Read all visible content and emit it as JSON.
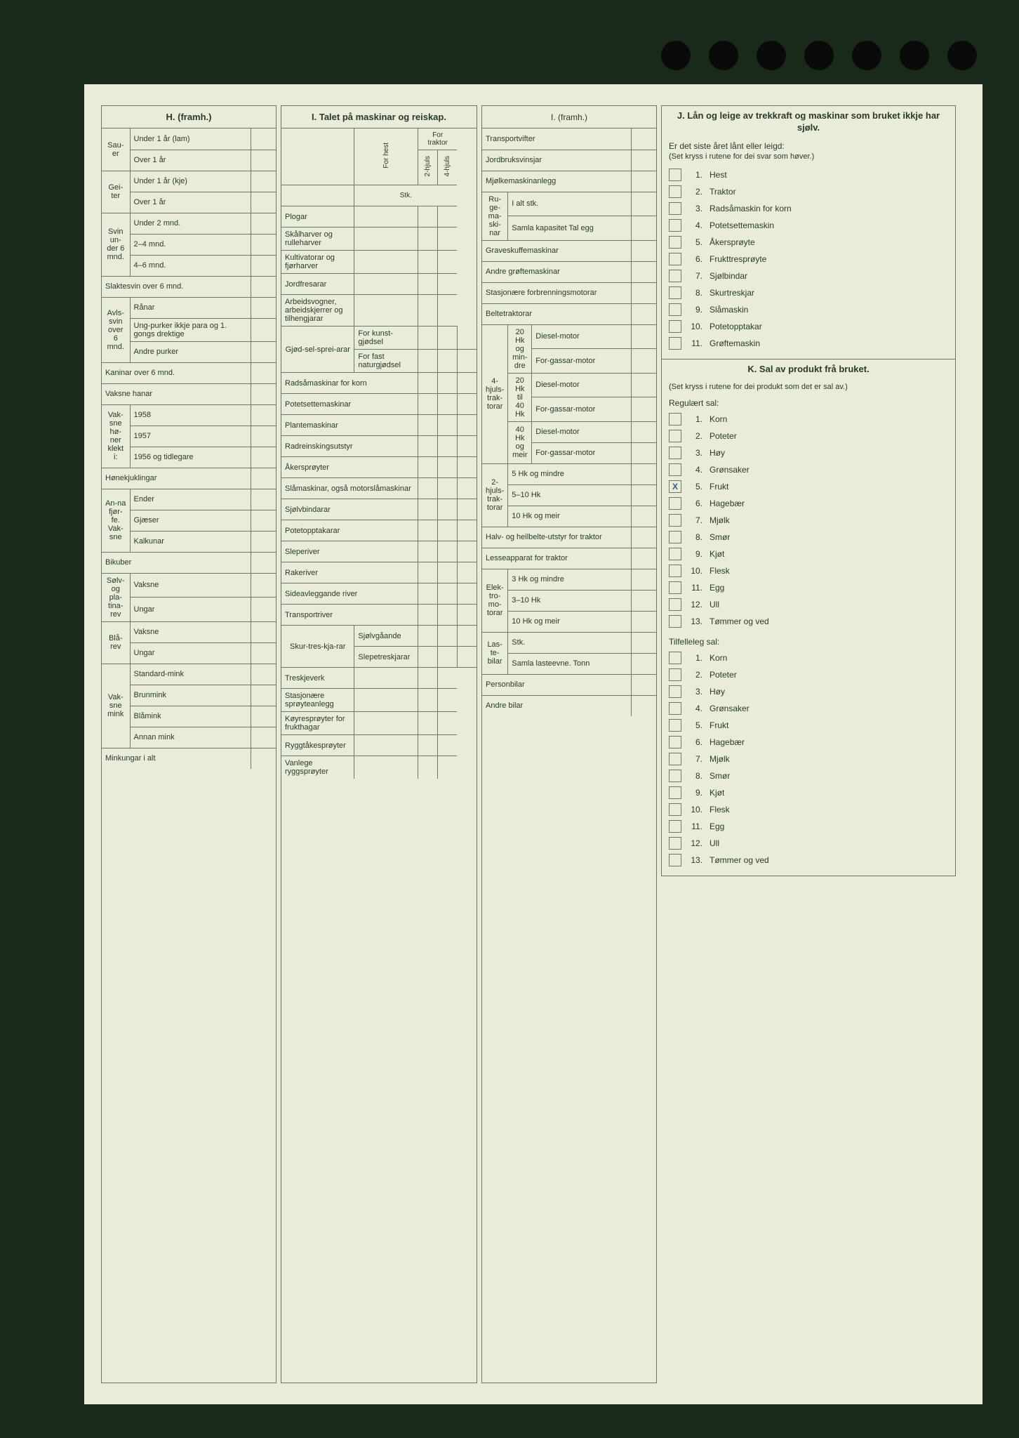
{
  "holes_count": 7,
  "H": {
    "title": "H. (framh.)",
    "groups": [
      {
        "label": "Sau-er",
        "rows": [
          "Under 1 år (lam)",
          "Over 1 år"
        ]
      },
      {
        "label": "Gei-ter",
        "rows": [
          "Under 1 år (kje)",
          "Over 1 år"
        ]
      },
      {
        "label": "Svin un-der 6 mnd.",
        "rows": [
          "Under 2 mnd.",
          "2–4 mnd.",
          "4–6 mnd."
        ]
      },
      {
        "label": null,
        "rows": [
          "Slaktesvin over 6 mnd."
        ]
      },
      {
        "label": "Avls-svin over 6 mnd.",
        "rows": [
          "Rånar",
          "Ung-purker ikkje para og 1. gongs drektige",
          "Andre purker"
        ]
      },
      {
        "label": null,
        "rows": [
          "Kaninar over 6 mnd."
        ]
      },
      {
        "label": null,
        "rows": [
          "Vaksne hanar"
        ]
      },
      {
        "label": "Vak-sne hø-ner klekt i:",
        "rows": [
          "1958",
          "1957",
          "1956 og tidlegare"
        ]
      },
      {
        "label": null,
        "rows": [
          "Hønekjuklingar"
        ]
      },
      {
        "label": "An-na fjør-fe. Vak-sne",
        "rows": [
          "Ender",
          "Gjæser",
          "Kalkunar"
        ]
      },
      {
        "label": null,
        "rows": [
          "Bikuber"
        ]
      },
      {
        "label": "Sølv- og pla-tina-rev",
        "rows": [
          "Vaksne",
          "Ungar"
        ]
      },
      {
        "label": "Blå-rev",
        "rows": [
          "Vaksne",
          "Ungar"
        ]
      },
      {
        "label": "Vak-sne mink",
        "rows": [
          "Standard-mink",
          "Brunmink",
          "Blåmink",
          "Annan mink"
        ]
      },
      {
        "label": null,
        "rows": [
          "Minkungar i alt"
        ]
      }
    ]
  },
  "I1": {
    "title": "I. Talet på maskinar og reiskap.",
    "traktor_head": "For traktor",
    "cols": [
      "For hest",
      "2-hjuls",
      "4-hjuls"
    ],
    "stk": "Stk.",
    "rows": [
      "Plogar",
      "Skålharver og rulleharver",
      "Kultivatorar og fjørharver",
      "Jordfresarar",
      "Arbeidsvogner, arbeidskjerrer og tilhengjarar"
    ],
    "gjodsel": {
      "label": "Gjød-sel-sprei-arar",
      "rows": [
        "For kunst-gjødsel",
        "For fast naturgjødsel"
      ]
    },
    "rows2": [
      "Radsåmaskinar for korn",
      "Potetsettemaskinar",
      "Plantemaskinar",
      "Radreinskingsutstyr",
      "Åkersprøyter",
      "Slåmaskinar, også motorslåmaskinar",
      "Sjølvbindarar",
      "Potetopptakarar",
      "Sleperiver",
      "Rakeriver",
      "Sideavleggande river",
      "Transportriver"
    ],
    "skur": {
      "label": "Skur-tres-kja-rar",
      "rows": [
        "Sjølvgåande",
        "Slepetreskjarar"
      ]
    },
    "rows3": [
      "Treskjeverk",
      "Stasjonære sprøyteanlegg",
      "Køyresprøyter for frukthagar",
      "Ryggtåkesprøyter",
      "Vanlege ryggsprøyter"
    ]
  },
  "I2": {
    "title": "I. (framh.)",
    "rows_top": [
      "Transportvifter",
      "Jordbruksvinsjar",
      "Mjølkemaskinanlegg"
    ],
    "ruge": {
      "label": "Ru-ge-ma-ski-nar",
      "rows": [
        "I alt stk.",
        "Samla kapasitet Tal egg"
      ]
    },
    "rows_mid": [
      "Graveskuffemaskinar",
      "Andre grøftemaskinar",
      "Stasjonære forbrenningsmotorar",
      "Beltetraktorar"
    ],
    "fourwheel": {
      "label": "4-hjuls-trak-torar",
      "groups": [
        {
          "label": "20 Hk og min-dre",
          "rows": [
            "Diesel-motor",
            "For-gassar-motor"
          ]
        },
        {
          "label": "20 Hk til 40 Hk",
          "rows": [
            "Diesel-motor",
            "For-gassar-motor"
          ]
        },
        {
          "label": "40 Hk og meir",
          "rows": [
            "Diesel-motor",
            "For-gassar-motor"
          ]
        }
      ]
    },
    "twowheel": {
      "label": "2-hjuls-trak-torar",
      "rows": [
        "5 Hk og mindre",
        "5–10 Hk",
        "10 Hk og meir"
      ]
    },
    "rows_belt": [
      "Halv- og heilbelte-utstyr for traktor",
      "Lesseapparat for traktor"
    ],
    "elektro": {
      "label": "Elek-tro-mo-torar",
      "rows": [
        "3 Hk og mindre",
        "3–10 Hk",
        "10 Hk og meir"
      ]
    },
    "laste": {
      "label": "Las-te-bilar",
      "rows": [
        "Stk.",
        "Samla lasteevne. Tonn"
      ]
    },
    "rows_bottom": [
      "Personbilar",
      "Andre bilar"
    ]
  },
  "J": {
    "title": "J. Lån og leige av trekkraft og maskinar som bruket ikkje har sjølv.",
    "intro": "Er det siste året lånt eller leigd:",
    "note": "(Set kryss i rutene for dei svar som høver.)",
    "items": [
      "Hest",
      "Traktor",
      "Radsåmaskin for korn",
      "Potetsettemaskin",
      "Åkersprøyte",
      "Frukttresprøyte",
      "Sjølbindar",
      "Skurtreskjar",
      "Slåmaskin",
      "Potetopptakar",
      "Grøftemaskin"
    ]
  },
  "K": {
    "title": "K. Sal av produkt frå bruket.",
    "note": "(Set kryss i rutene for dei produkt som det er sal av.)",
    "regulaert_label": "Regulært sal:",
    "regulaert": [
      {
        "label": "Korn",
        "checked": false
      },
      {
        "label": "Poteter",
        "checked": false
      },
      {
        "label": "Høy",
        "checked": false
      },
      {
        "label": "Grønsaker",
        "checked": false
      },
      {
        "label": "Frukt",
        "checked": true
      },
      {
        "label": "Hagebær",
        "checked": false
      },
      {
        "label": "Mjølk",
        "checked": false
      },
      {
        "label": "Smør",
        "checked": false
      },
      {
        "label": "Kjøt",
        "checked": false
      },
      {
        "label": "Flesk",
        "checked": false
      },
      {
        "label": "Egg",
        "checked": false
      },
      {
        "label": "Ull",
        "checked": false
      },
      {
        "label": "Tømmer og ved",
        "checked": false
      }
    ],
    "tilfelleleg_label": "Tilfelleleg sal:",
    "tilfelleleg": [
      "Korn",
      "Poteter",
      "Høy",
      "Grønsaker",
      "Frukt",
      "Hagebær",
      "Mjølk",
      "Smør",
      "Kjøt",
      "Flesk",
      "Egg",
      "Ull",
      "Tømmer og ved"
    ]
  }
}
